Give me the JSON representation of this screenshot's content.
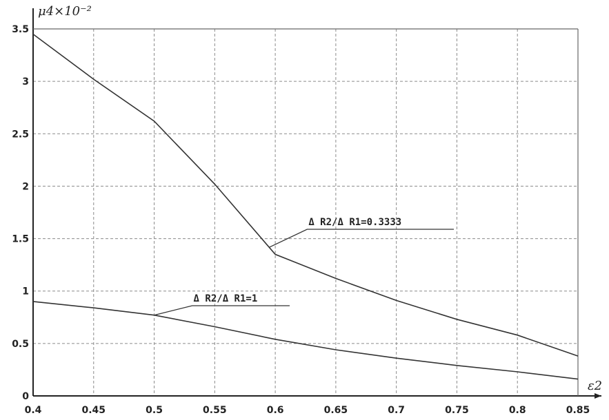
{
  "chart_data": {
    "type": "line",
    "xlabel": "ε2",
    "ylabel": "μ4×10⁻²",
    "xlim": [
      0.4,
      0.85
    ],
    "ylim": [
      0,
      3.5
    ],
    "x_ticks": [
      "0.4",
      "0.45",
      "0.5",
      "0.55",
      "0.6",
      "0.65",
      "0.7",
      "0.75",
      "0.8",
      "0.85"
    ],
    "y_ticks": [
      "0",
      "0.5",
      "1",
      "1.5",
      "2",
      "2.5",
      "3",
      "3.5"
    ],
    "grid": true,
    "series": [
      {
        "name": "Δ R2/Δ R1=0.3333",
        "x": [
          0.4,
          0.45,
          0.5,
          0.55,
          0.6,
          0.65,
          0.7,
          0.75,
          0.8,
          0.85
        ],
        "y": [
          3.45,
          3.02,
          2.62,
          2.02,
          1.35,
          1.12,
          0.91,
          0.73,
          0.58,
          0.38
        ]
      },
      {
        "name": "Δ R2/Δ R1=1",
        "x": [
          0.4,
          0.45,
          0.5,
          0.55,
          0.6,
          0.65,
          0.7,
          0.75,
          0.8,
          0.85
        ],
        "y": [
          0.9,
          0.84,
          0.77,
          0.66,
          0.54,
          0.44,
          0.36,
          0.29,
          0.23,
          0.16
        ]
      }
    ],
    "annotations": [
      {
        "text": "Δ R2/Δ R1=0.3333",
        "series": 0,
        "anchor_x": 0.595
      },
      {
        "text": "Δ R2/Δ R1=1",
        "series": 1,
        "anchor_x": 0.5
      }
    ]
  }
}
